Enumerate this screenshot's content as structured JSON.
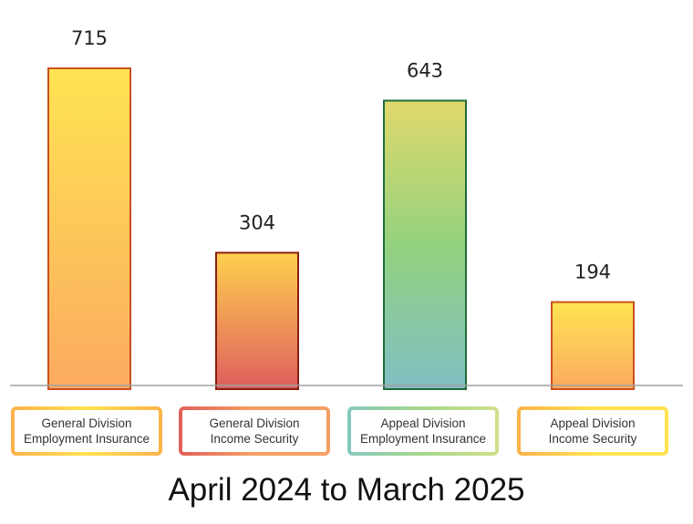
{
  "chart_data": {
    "type": "bar",
    "categories": [
      [
        "General Division",
        "Employment Insurance"
      ],
      [
        "General Division",
        "Income Security"
      ],
      [
        "Appeal Division",
        "Employment Insurance"
      ],
      [
        "Appeal Division",
        "Income Security"
      ]
    ],
    "values": [
      715,
      304,
      643,
      194
    ],
    "value_labels": [
      "715",
      "304",
      "643",
      "194"
    ],
    "title": "",
    "caption": "April 2024 to March 2025",
    "ylim": [
      0,
      715
    ],
    "grid": false,
    "legend": "none",
    "colors": {
      "bar1": [
        "#ffe452",
        "#fbaa60"
      ],
      "bar2": [
        "#ffd04e",
        "#de5e5e"
      ],
      "bar3": [
        "#e0d96c",
        "#94d27e",
        "#7fbfc3"
      ],
      "bar4": [
        "#ffe452",
        "#fbaa60"
      ],
      "bar_borders": [
        "#c8501e",
        "#8a1e10",
        "#1f6b3a",
        "#c8501e"
      ],
      "axis": "#a0a0a0"
    }
  }
}
